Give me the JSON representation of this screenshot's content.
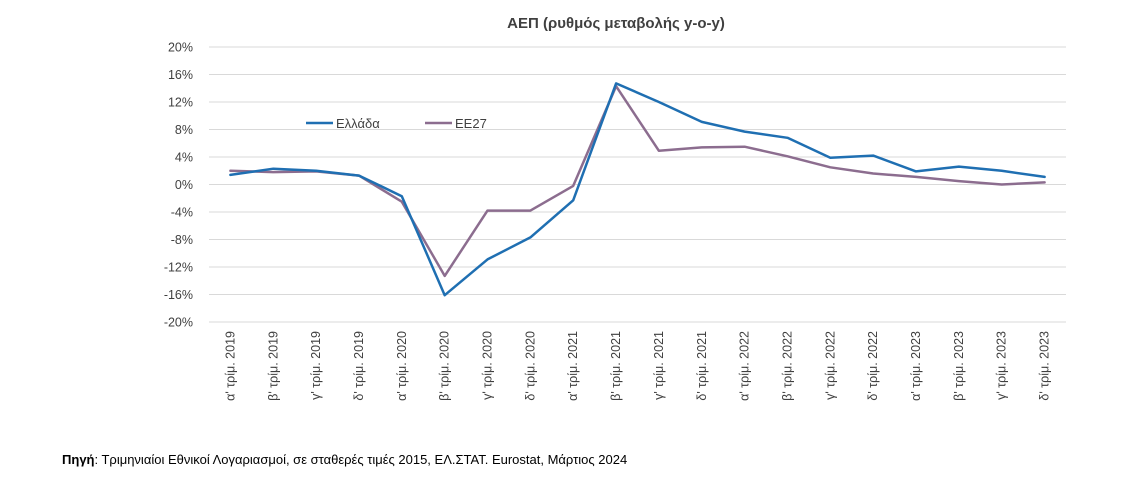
{
  "chart_data": {
    "type": "line",
    "title": "ΑΕΠ (ρυθμός μεταβολής y-o-y)",
    "xlabel": "",
    "ylabel": "",
    "ylim": [
      -20,
      20
    ],
    "y_ticks": [
      "20%",
      "16%",
      "12%",
      "8%",
      "4%",
      "0%",
      "-4%",
      "-8%",
      "-12%",
      "-16%",
      "-20%"
    ],
    "y_tick_values": [
      20,
      16,
      12,
      8,
      4,
      0,
      -4,
      -8,
      -12,
      -16,
      -20
    ],
    "grid": true,
    "legend_position": "upper-left",
    "categories": [
      "α' τρίμ. 2019",
      "β' τρίμ. 2019",
      "γ' τρίμ. 2019",
      "δ' τρίμ. 2019",
      "α' τρίμ. 2020",
      "β' τρίμ. 2020",
      "γ' τρίμ. 2020",
      "δ' τρίμ. 2020",
      "α' τρίμ. 2021",
      "β' τρίμ. 2021",
      "γ' τρίμ. 2021",
      "δ' τρίμ. 2021",
      "α' τρίμ. 2022",
      "β' τρίμ. 2022",
      "γ' τρίμ. 2022",
      "δ' τρίμ. 2022",
      "α' τρίμ. 2023",
      "β' τρίμ. 2023",
      "γ' τρίμ. 2023",
      "δ' τρίμ. 2023"
    ],
    "series": [
      {
        "name": "Ελλάδα",
        "color": "#1f6fb2",
        "values": [
          1.4,
          2.3,
          2.0,
          1.3,
          -1.7,
          -16.1,
          -10.9,
          -7.7,
          -2.3,
          14.7,
          12.0,
          9.1,
          7.7,
          6.8,
          3.9,
          4.2,
          1.9,
          2.6,
          2.0,
          1.1
        ]
      },
      {
        "name": "ΕΕ27",
        "color": "#8c6d8f",
        "values": [
          2.0,
          1.8,
          1.9,
          1.3,
          -2.5,
          -13.3,
          -3.8,
          -3.8,
          -0.2,
          14.3,
          4.9,
          5.4,
          5.5,
          4.1,
          2.5,
          1.6,
          1.1,
          0.5,
          0.0,
          0.3
        ]
      }
    ]
  },
  "source": {
    "label": "Πηγή",
    "text": ": Τριμηνιαίοι Εθνικοί Λογαριασμοί, σε σταθερές τιμές 2015, ΕΛ.ΣΤΑΤ. Eurostat, Μάρτιος 2024"
  }
}
